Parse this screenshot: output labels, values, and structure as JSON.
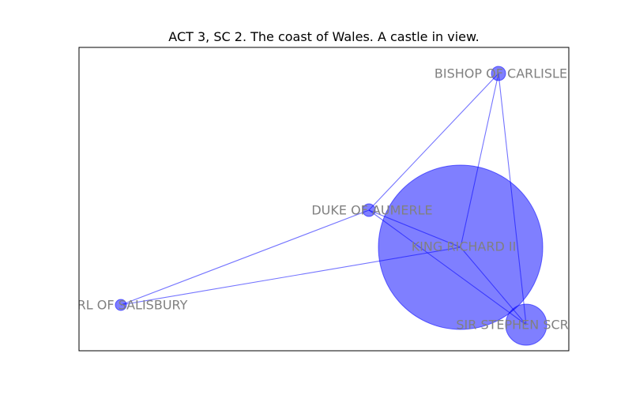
{
  "title": "ACT 3, SC 2. The coast of Wales. A castle in view.",
  "colors": {
    "node_fill": "#0000ff",
    "node_fill_opacity": 0.5,
    "edge": "#0000ff",
    "label": "#808080"
  },
  "nodes": [
    {
      "id": "king",
      "label": "KING RICHARD II",
      "weight": 1.0
    },
    {
      "id": "scroop",
      "label": "SIR STEPHEN SCROOP",
      "weight": 0.25
    },
    {
      "id": "aumerle",
      "label": "DUKE OF AUMERLE",
      "weight": 0.08
    },
    {
      "id": "carlisle",
      "label": "BISHOP OF CARLISLE",
      "weight": 0.09
    },
    {
      "id": "salisbury",
      "label": "EARL OF SALISBURY",
      "weight": 0.07
    }
  ],
  "edges": [
    [
      "king",
      "scroop"
    ],
    [
      "king",
      "aumerle"
    ],
    [
      "king",
      "carlisle"
    ],
    [
      "king",
      "salisbury"
    ],
    [
      "aumerle",
      "carlisle"
    ],
    [
      "aumerle",
      "salisbury"
    ],
    [
      "aumerle",
      "scroop"
    ],
    [
      "carlisle",
      "scroop"
    ]
  ]
}
